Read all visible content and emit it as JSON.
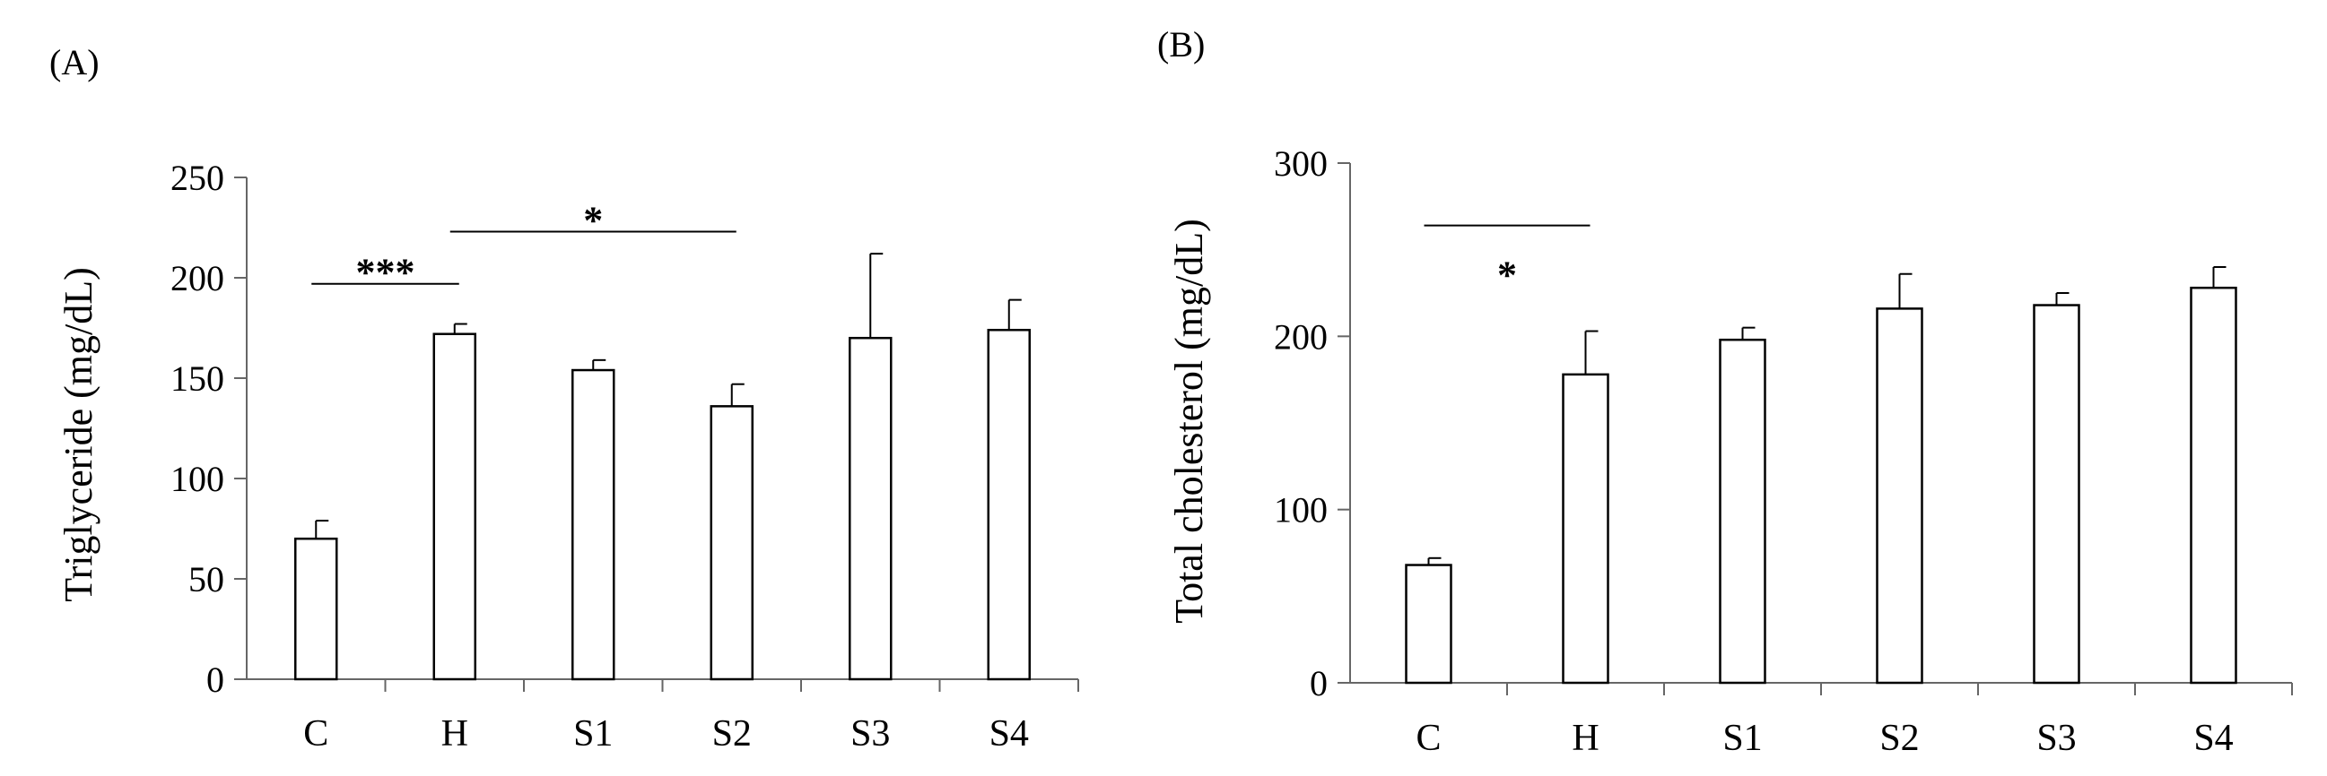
{
  "chart_data": [
    {
      "type": "bar",
      "panel_label": "(A)",
      "ylabel": "Triglyceride (mg/dL)",
      "xlabel": "",
      "categories": [
        "C",
        "H",
        "S1",
        "S2",
        "S3",
        "S4"
      ],
      "values": [
        70,
        172,
        154,
        136,
        170,
        174
      ],
      "errors": [
        9,
        5,
        5,
        11,
        42,
        15
      ],
      "ylim": [
        0,
        250
      ],
      "yticks": [
        0,
        50,
        100,
        150,
        200,
        250
      ],
      "grid": false,
      "bar_fill": "#ffffff",
      "bar_stroke": "#000000",
      "significance": [
        {
          "from": "C",
          "to": "H",
          "level": 197,
          "label": "***",
          "label_position": "above"
        },
        {
          "from": "H",
          "to": "S2",
          "level": 223,
          "label": "*",
          "label_position": "above"
        }
      ]
    },
    {
      "type": "bar",
      "panel_label": "(B)",
      "ylabel": "Total cholesterol (mg/dL)",
      "xlabel": "",
      "categories": [
        "C",
        "H",
        "S1",
        "S2",
        "S3",
        "S4"
      ],
      "values": [
        68,
        178,
        198,
        216,
        218,
        228
      ],
      "errors": [
        4,
        25,
        7,
        20,
        7,
        12
      ],
      "ylim": [
        0,
        300
      ],
      "yticks": [
        0,
        100,
        200,
        300
      ],
      "grid": false,
      "bar_fill": "#ffffff",
      "bar_stroke": "#000000",
      "significance": [
        {
          "from": "C",
          "to": "H",
          "level": 264,
          "label": "*",
          "label_position": "below"
        }
      ]
    }
  ]
}
